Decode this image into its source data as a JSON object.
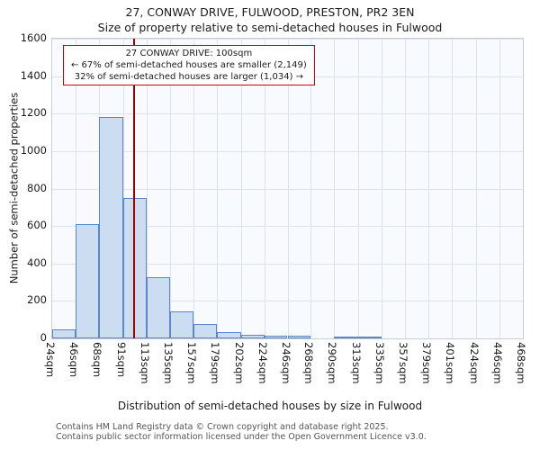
{
  "title": "27, CONWAY DRIVE, FULWOOD, PRESTON, PR2 3EN",
  "subtitle": "Size of property relative to semi-detached houses in Fulwood",
  "annotation": {
    "line1": "27 CONWAY DRIVE: 100sqm",
    "line2": "← 67% of semi-detached houses are smaller (2,149)",
    "line3": "32% of semi-detached houses are larger (1,034) →",
    "border_color": "#cc0000"
  },
  "footer": {
    "line1": "Contains HM Land Registry data © Crown copyright and database right 2025.",
    "line2": "Contains public sector information licensed under the Open Government Licence v3.0."
  },
  "chart_data": {
    "type": "bar",
    "title": "27, CONWAY DRIVE, FULWOOD, PRESTON, PR2 3EN — Size of property relative to semi-detached houses in Fulwood",
    "xlabel": "Distribution of semi-detached houses by size in Fulwood",
    "ylabel": "Number of semi-detached properties",
    "bin_edges": [
      24,
      46,
      68,
      91,
      113,
      135,
      157,
      179,
      202,
      224,
      246,
      268,
      290,
      313,
      335,
      357,
      379,
      401,
      424,
      446,
      468
    ],
    "tick_labels": [
      "24sqm",
      "46sqm",
      "68sqm",
      "91sqm",
      "113sqm",
      "135sqm",
      "157sqm",
      "179sqm",
      "202sqm",
      "224sqm",
      "246sqm",
      "268sqm",
      "290sqm",
      "313sqm",
      "335sqm",
      "357sqm",
      "379sqm",
      "401sqm",
      "424sqm",
      "446sqm",
      "468sqm"
    ],
    "values": [
      50,
      610,
      1180,
      750,
      325,
      145,
      75,
      35,
      20,
      15,
      15,
      0,
      8,
      8,
      0,
      0,
      0,
      0,
      0,
      0
    ],
    "ylim": [
      0,
      1600
    ],
    "y_ticks": [
      0,
      200,
      400,
      600,
      800,
      1000,
      1200,
      1400,
      1600
    ],
    "marker_value": 100,
    "marker_color": "#990000",
    "bar_fill": "#cdddf1",
    "bar_border": "#5a87c8",
    "grid_color": "#dce2ee",
    "legend": "none",
    "grid": "on"
  }
}
